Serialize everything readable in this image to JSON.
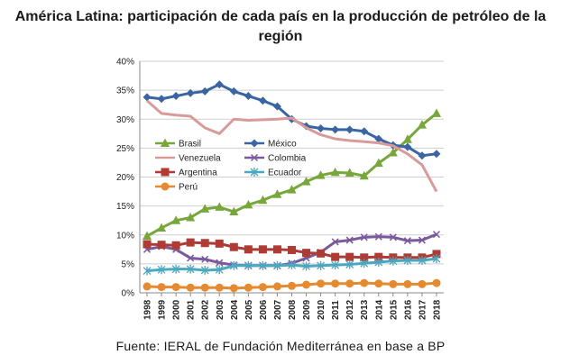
{
  "title_line1": "América Latina: participación de cada país en la producción de petróleo de la",
  "title_line2": "región",
  "source": "Fuente: IERAL de Fundación Mediterránea en base a BP",
  "chart_data": {
    "type": "line",
    "title": "América Latina: participación de cada país en la producción de petróleo de la región",
    "xlabel": "",
    "ylabel": "",
    "x": [
      "1998",
      "1999",
      "2000",
      "2001",
      "2002",
      "2003",
      "2004",
      "2005",
      "2006",
      "2007",
      "2008",
      "2009",
      "2010",
      "2011",
      "2012",
      "2013",
      "2014",
      "2015",
      "2016",
      "2017",
      "2018"
    ],
    "ylim": [
      0,
      40
    ],
    "yticks": [
      "0%",
      "5%",
      "10%",
      "15%",
      "20%",
      "25%",
      "30%",
      "35%",
      "40%"
    ],
    "grid": "horizontal",
    "legend_placement": "left-middle",
    "series": [
      {
        "name": "Brasil",
        "color": "#77a73b",
        "marker": "triangle",
        "values": [
          9.8,
          11.2,
          12.5,
          13.0,
          14.5,
          14.8,
          14.0,
          15.2,
          16.0,
          17.0,
          17.8,
          19.2,
          20.3,
          20.8,
          20.7,
          20.2,
          22.4,
          24.2,
          26.5,
          29.0,
          31.0
        ]
      },
      {
        "name": "México",
        "color": "#3a64a4",
        "marker": "diamond",
        "values": [
          33.8,
          33.5,
          34.0,
          34.5,
          34.8,
          36.0,
          34.8,
          34.0,
          33.2,
          32.2,
          30.0,
          28.8,
          28.4,
          28.2,
          28.2,
          27.9,
          26.6,
          25.5,
          25.2,
          23.7,
          24.0
        ]
      },
      {
        "name": "Venezuela",
        "color": "#d99a9a",
        "marker": "none",
        "values": [
          33.2,
          31.0,
          30.7,
          30.5,
          28.5,
          27.5,
          30.0,
          29.8,
          29.9,
          30.0,
          30.2,
          28.5,
          27.3,
          26.6,
          26.3,
          26.1,
          25.9,
          25.4,
          24.0,
          22.1,
          17.5
        ]
      },
      {
        "name": "Colombia",
        "color": "#7a5a9c",
        "marker": "x",
        "values": [
          7.5,
          8.0,
          7.5,
          6.0,
          5.8,
          5.2,
          4.8,
          4.7,
          4.7,
          4.7,
          5.1,
          6.0,
          7.0,
          8.8,
          9.1,
          9.6,
          9.7,
          9.6,
          9.0,
          9.1,
          10.1
        ]
      },
      {
        "name": "Argentina",
        "color": "#b03a34",
        "marker": "square",
        "values": [
          8.4,
          8.3,
          8.2,
          8.7,
          8.6,
          8.5,
          7.9,
          7.5,
          7.5,
          7.5,
          7.4,
          6.9,
          6.8,
          6.2,
          6.2,
          6.1,
          6.2,
          6.1,
          6.1,
          6.1,
          6.7
        ]
      },
      {
        "name": "Ecuador",
        "color": "#4aa8c0",
        "marker": "asterisk",
        "values": [
          3.8,
          4.0,
          4.1,
          4.1,
          3.9,
          4.0,
          4.7,
          4.7,
          4.7,
          4.7,
          4.8,
          4.6,
          4.7,
          4.8,
          4.9,
          5.1,
          5.3,
          5.5,
          5.6,
          5.6,
          5.9
        ]
      },
      {
        "name": "Perú",
        "color": "#e58a30",
        "marker": "circle",
        "values": [
          1.1,
          1.0,
          1.0,
          0.9,
          0.9,
          0.9,
          0.8,
          0.9,
          1.0,
          1.1,
          1.2,
          1.4,
          1.6,
          1.6,
          1.6,
          1.7,
          1.6,
          1.5,
          1.5,
          1.5,
          1.7
        ]
      }
    ]
  }
}
